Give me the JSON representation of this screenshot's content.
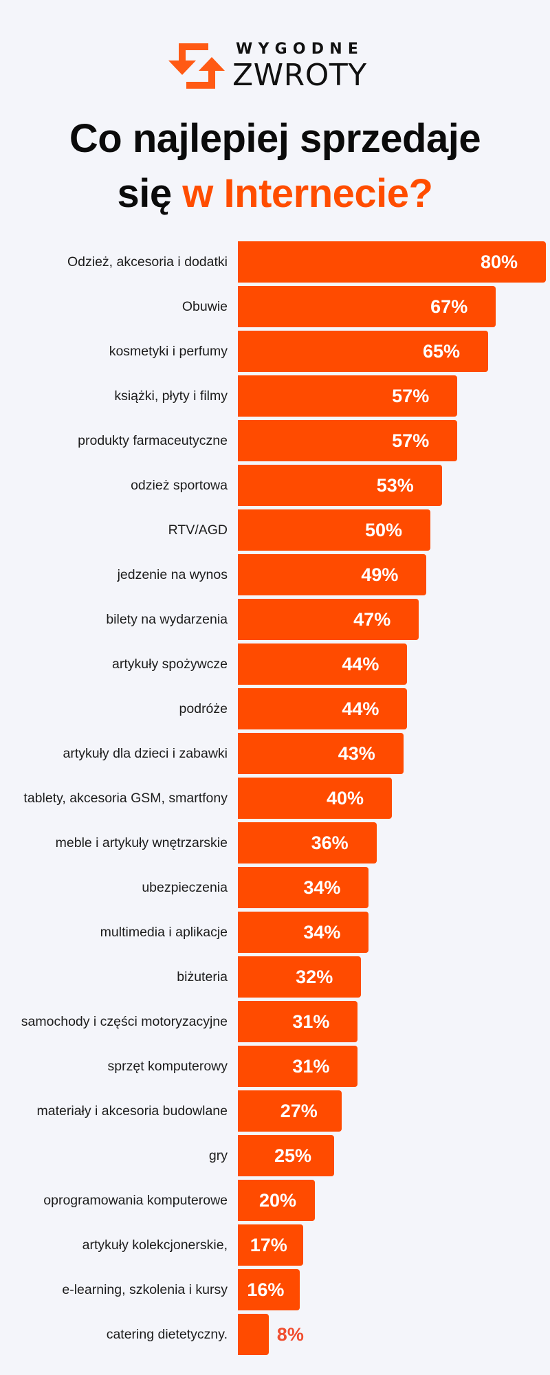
{
  "logo": {
    "icon": "return-arrows-icon",
    "line1": "WYGODNE",
    "line2": "ZWROTY",
    "color": "#ff5a14"
  },
  "title": {
    "line1": "Co najlepiej sprzedaje",
    "line2_plain": "się ",
    "line2_accent": "w Internecie?",
    "accent_color": "#ff4d00"
  },
  "colors": {
    "bar": "#ff4b00",
    "value_inside": "#ffffff",
    "value_outside": "#f04e30",
    "background": "#f4f5fa"
  },
  "chart_data": {
    "type": "bar",
    "orientation": "horizontal",
    "title": "Co najlepiej sprzedaje się w Internecie?",
    "xlabel": "",
    "ylabel": "",
    "unit": "%",
    "xlim": [
      0,
      80
    ],
    "grid": false,
    "legend": null,
    "categories": [
      "Odzież, akcesoria i dodatki",
      "Obuwie",
      "kosmetyki i perfumy",
      "książki, płyty i filmy",
      "produkty farmaceutyczne",
      "odzież sportowa",
      "RTV/AGD",
      "jedzenie na wynos",
      "bilety na wydarzenia",
      "artykuły spożywcze",
      "podróże",
      "artykuły dla dzieci i zabawki",
      "tablety, akcesoria GSM, smartfony",
      "meble i artykuły wnętrzarskie",
      "ubezpieczenia",
      "multimedia i aplikacje",
      "biżuteria",
      "samochody i części motoryzacyjne",
      "sprzęt komputerowy",
      "materiały i akcesoria budowlane",
      "gry",
      "oprogramowania komputerowe",
      "artykuły kolekcjonerskie,",
      "e-learning, szkolenia i kursy",
      "catering dietetyczny."
    ],
    "values": [
      80,
      67,
      65,
      57,
      57,
      53,
      50,
      49,
      47,
      44,
      44,
      43,
      40,
      36,
      34,
      34,
      32,
      31,
      31,
      27,
      25,
      20,
      17,
      16,
      8
    ],
    "value_labels": [
      "80%",
      "67%",
      "65%",
      "57%",
      "57%",
      "53%",
      "50%",
      "49%",
      "47%",
      "44%",
      "44%",
      "43%",
      "40%",
      "36%",
      "34%",
      "34%",
      "32%",
      "31%",
      "31%",
      "27%",
      "25%",
      "20%",
      "17%",
      "16%",
      "8%"
    ]
  }
}
